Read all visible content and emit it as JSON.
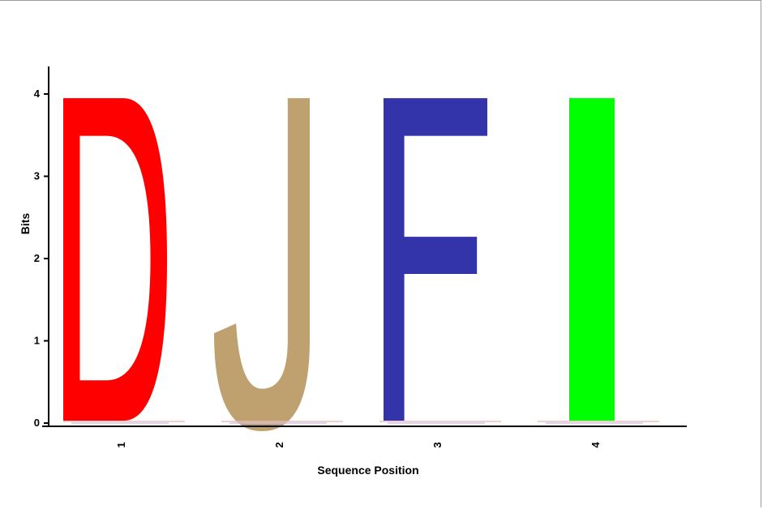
{
  "chart_data": {
    "type": "sequence-logo",
    "xlabel": "Sequence Position",
    "ylabel": "Bits",
    "ylim": [
      0,
      4
    ],
    "yticks": [
      "0",
      "1",
      "2",
      "3",
      "4"
    ],
    "positions": [
      {
        "label": "1",
        "letter": "D",
        "bits": 3.95,
        "color": "#ff0000"
      },
      {
        "label": "2",
        "letter": "J",
        "bits": 3.95,
        "color": "#bfa170"
      },
      {
        "label": "3",
        "letter": "F",
        "bits": 3.95,
        "color": "#3333aa"
      },
      {
        "label": "4",
        "letter": "I",
        "bits": 3.95,
        "color": "#00ff00"
      }
    ]
  }
}
